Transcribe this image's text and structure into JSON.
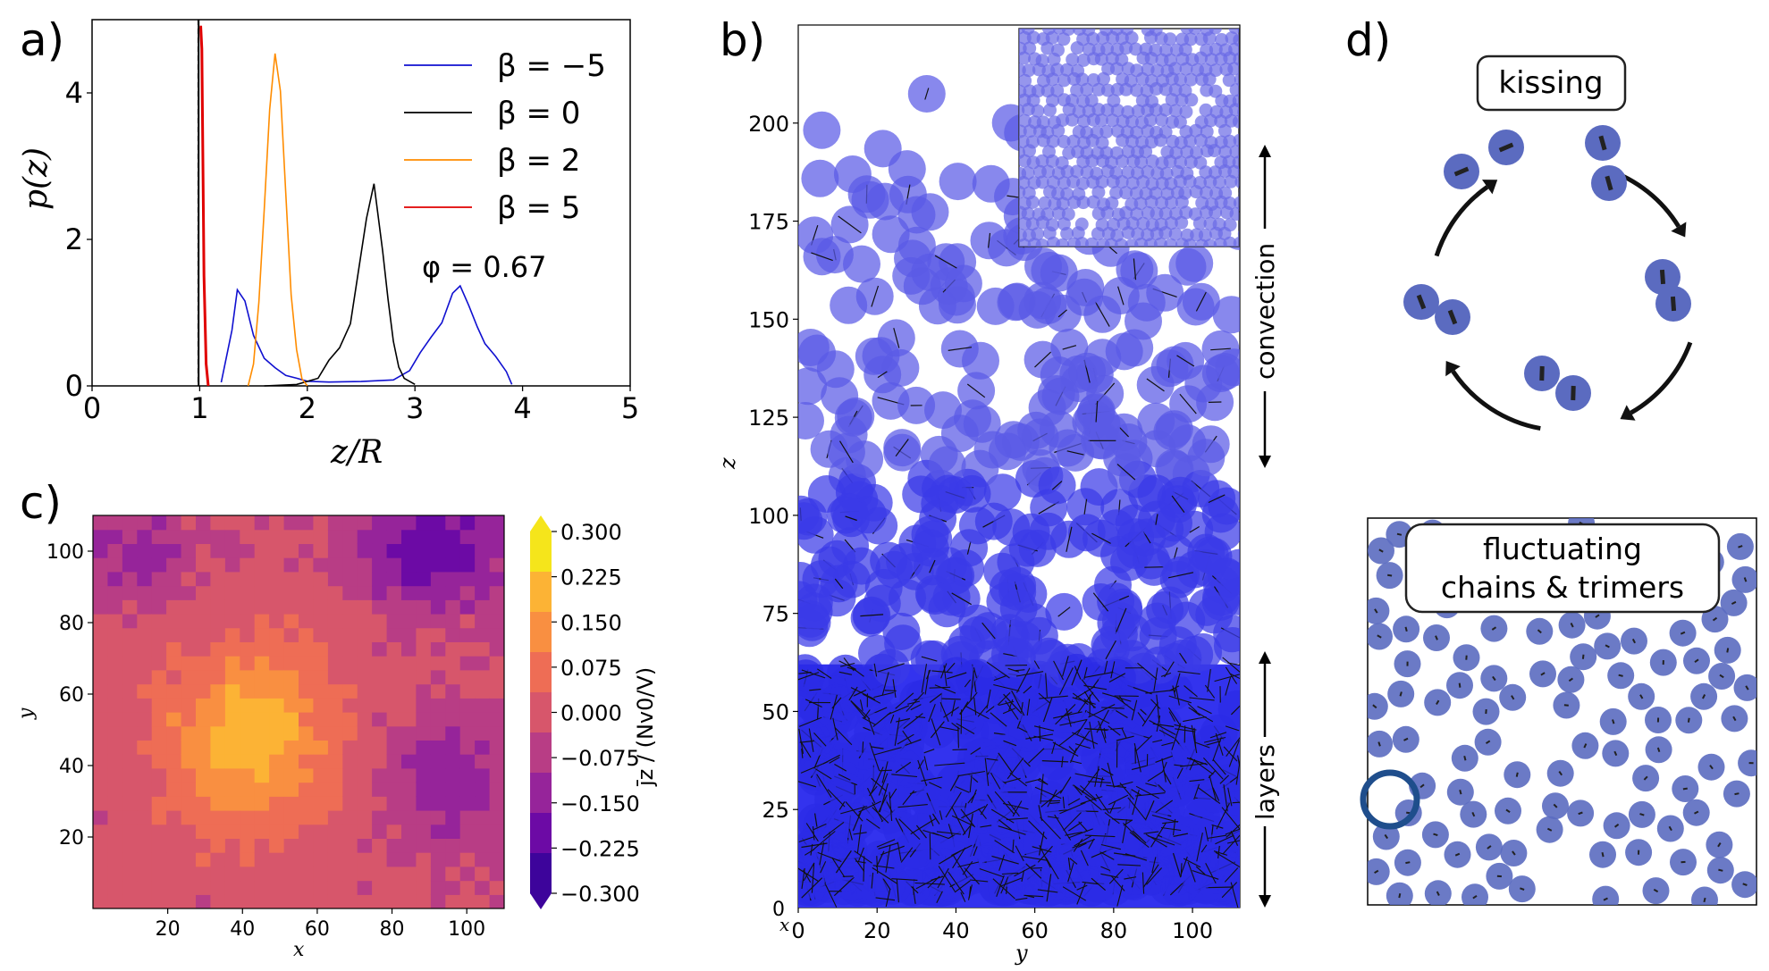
{
  "panels": {
    "a": "a)",
    "b": "b)",
    "c": "c)",
    "d": "d)"
  },
  "chart_data": [
    {
      "id": "a",
      "type": "line",
      "xlabel": "z/R",
      "ylabel": "p(z)",
      "xlim": [
        0,
        5
      ],
      "ylim": [
        0,
        5
      ],
      "xticks": [
        "0",
        "1",
        "2",
        "3",
        "4",
        "5"
      ],
      "yticks": [
        "0",
        "2",
        "4"
      ],
      "annotation": "φ = 0.67",
      "legend_position": "top-right",
      "series": [
        {
          "name": "β = −5",
          "color": "#1010d0",
          "x": [
            1.2,
            1.3,
            1.35,
            1.42,
            1.5,
            1.6,
            1.7,
            1.8,
            1.9,
            2.0,
            2.2,
            2.5,
            2.8,
            2.95,
            3.05,
            3.15,
            3.25,
            3.35,
            3.42,
            3.5,
            3.58,
            3.65,
            3.75,
            3.85,
            3.9
          ],
          "values": [
            0.05,
            0.8,
            1.3,
            1.2,
            0.7,
            0.4,
            0.25,
            0.15,
            0.1,
            0.06,
            0.05,
            0.06,
            0.08,
            0.2,
            0.45,
            0.7,
            0.9,
            1.2,
            1.3,
            1.05,
            0.8,
            0.6,
            0.4,
            0.2,
            0.02
          ]
        },
        {
          "name": "β = 0",
          "color": "#000000",
          "x": [
            1.6,
            1.9,
            2.1,
            2.2,
            2.3,
            2.4,
            2.5,
            2.55,
            2.62,
            2.7,
            2.75,
            2.8,
            2.85,
            2.9,
            3.0
          ],
          "values": [
            0.0,
            0.02,
            0.1,
            0.35,
            0.55,
            0.9,
            1.8,
            2.2,
            2.65,
            1.8,
            1.2,
            0.6,
            0.25,
            0.1,
            0.02
          ]
        },
        {
          "name": "β = 2",
          "color": "#ff8c00",
          "x": [
            1.45,
            1.5,
            1.55,
            1.6,
            1.65,
            1.7,
            1.75,
            1.8,
            1.85,
            1.9,
            1.95,
            2.0
          ],
          "values": [
            0.0,
            0.3,
            1.2,
            2.5,
            3.8,
            4.75,
            3.9,
            2.6,
            1.2,
            0.5,
            0.1,
            0.0
          ]
        },
        {
          "name": "β = 5",
          "color": "#e00000",
          "x": [
            1.0,
            1.01,
            1.02,
            1.04,
            1.06,
            1.08
          ],
          "values": [
            4.9,
            4.9,
            4.6,
            1.5,
            0.3,
            0.0
          ]
        }
      ]
    },
    {
      "id": "b",
      "type": "scatter",
      "xlabel": "y",
      "ylabel": "z",
      "xlim": [
        0,
        112
      ],
      "ylim": [
        0,
        225
      ],
      "xticks": [
        "0",
        "20",
        "40",
        "60",
        "80",
        "100"
      ],
      "yticks": [
        "0",
        "25",
        "50",
        "75",
        "100",
        "125",
        "150",
        "175",
        "200"
      ],
      "corner_labels": [
        "0",
        "x"
      ],
      "annotations": [
        "convection",
        "layers"
      ]
    },
    {
      "id": "c",
      "type": "heatmap",
      "xlabel": "x",
      "ylabel": "y",
      "xlim": [
        0,
        110
      ],
      "ylim": [
        0,
        110
      ],
      "xticks": [
        "20",
        "40",
        "60",
        "80",
        "100"
      ],
      "yticks": [
        "20",
        "40",
        "60",
        "80",
        "100"
      ],
      "colorbar_label": "j̄z / (Nv0/V)",
      "colorbar_ticks": [
        "0.300",
        "0.225",
        "0.150",
        "0.075",
        "0.000",
        "−0.075",
        "−0.150",
        "−0.225",
        "−0.300"
      ],
      "colorbar_colors": [
        "#f5e51b",
        "#fcb335",
        "#f98f41",
        "#ee6d55",
        "#d7566b",
        "#b83d85",
        "#96249a",
        "#6c0aa5",
        "#3d049b"
      ]
    },
    {
      "id": "d",
      "type": "table",
      "labels": [
        "kissing",
        "fluctuating",
        "chains & trimers"
      ]
    }
  ]
}
